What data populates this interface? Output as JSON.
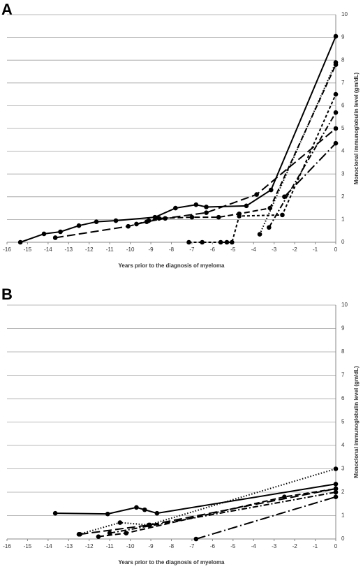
{
  "chart_data": [
    {
      "type": "line",
      "panel_label": "A",
      "x_label": "Years prior to the diagnosis of myeloma",
      "y_label": "Monoclonal immunoglobulin level (gm/dL)",
      "xlim": [
        -16,
        0
      ],
      "xticks": [
        -16,
        -15,
        -14,
        -13,
        -12,
        -11,
        -10,
        -9,
        -8,
        -7,
        -6,
        -5,
        -4,
        -3,
        -2,
        -1,
        0
      ],
      "ylim": [
        0,
        10
      ],
      "yticks": [
        0,
        1,
        2,
        3,
        4,
        5,
        6,
        7,
        8,
        9,
        10
      ],
      "grid": true,
      "series": [
        {
          "color": "#000000",
          "dash": "solid",
          "x": [
            -15.35,
            -14.2,
            -13.4,
            -12.5,
            -11.65,
            -10.7,
            -8.8,
            -7.8,
            -6.8,
            -6.3,
            -4.35,
            -3.15,
            0
          ],
          "values": [
            0,
            0.37,
            0.46,
            0.73,
            0.9,
            0.95,
            1.1,
            1.5,
            1.65,
            1.55,
            1.6,
            2.3,
            9.05
          ]
        },
        {
          "color": "#000000",
          "dash": "long-dash",
          "x": [
            -13.65,
            -10.1,
            -9.2,
            -8.3,
            -6.3,
            -3.85,
            0
          ],
          "values": [
            0.2,
            0.7,
            0.9,
            1.05,
            1.3,
            2.1,
            5.0
          ]
        },
        {
          "color": "#000000",
          "dash": "dash",
          "x": [
            -9.7,
            -9.1,
            -8.6,
            -7.0,
            -5.7,
            -4.7,
            -3.2,
            0
          ],
          "values": [
            0.8,
            0.95,
            1.05,
            1.1,
            1.1,
            1.25,
            1.5,
            7.8
          ]
        },
        {
          "color": "#000000",
          "dash": "short-dash",
          "x": [
            -7.15,
            -6.5,
            -5.6,
            -5.3,
            -5.05,
            -4.7,
            -2.6,
            0
          ],
          "values": [
            0,
            0,
            0,
            0,
            0,
            1.15,
            1.2,
            6.5
          ]
        },
        {
          "color": "#000000",
          "dash": "dot",
          "x": [
            -3.7,
            0
          ],
          "values": [
            0.35,
            7.9
          ]
        },
        {
          "color": "#000000",
          "dash": "dash-dot",
          "x": [
            -3.25,
            0
          ],
          "values": [
            0.65,
            5.7
          ]
        },
        {
          "color": "#000000",
          "dash": "long-dash-dot",
          "x": [
            -2.5,
            0
          ],
          "values": [
            2.0,
            4.35
          ]
        }
      ]
    },
    {
      "type": "line",
      "panel_label": "B",
      "x_label": "Years prior to the diagnosis of myeloma",
      "y_label": "Monoclonal immunoglobulin level (gm/dL)",
      "xlim": [
        -16,
        0
      ],
      "xticks": [
        -16,
        -15,
        -14,
        -13,
        -12,
        -11,
        -10,
        -9,
        -8,
        -7,
        -6,
        -5,
        -4,
        -3,
        -2,
        -1,
        0
      ],
      "ylim": [
        0,
        10
      ],
      "yticks": [
        0,
        1,
        2,
        3,
        4,
        5,
        6,
        7,
        8,
        9,
        10
      ],
      "grid": true,
      "series": [
        {
          "color": "#000000",
          "dash": "solid",
          "x": [
            -13.65,
            -11.1,
            -9.7,
            -9.3,
            -8.7,
            0
          ],
          "values": [
            1.1,
            1.07,
            1.35,
            1.25,
            1.1,
            2.35
          ]
        },
        {
          "color": "#000000",
          "dash": "dot",
          "x": [
            -12.5,
            -10.5,
            -9.1,
            0
          ],
          "values": [
            0.2,
            0.7,
            0.6,
            3.0
          ]
        },
        {
          "color": "#000000",
          "dash": "long-dash",
          "x": [
            -12.45,
            -9.05,
            0
          ],
          "values": [
            0.2,
            0.6,
            2.15
          ]
        },
        {
          "color": "#000000",
          "dash": "dash",
          "x": [
            -11.55,
            -10.2,
            -2.5,
            0
          ],
          "values": [
            0.1,
            0.25,
            1.8,
            2.15
          ]
        },
        {
          "color": "#000000",
          "dash": "dash-dot",
          "x": [
            -11.0,
            0
          ],
          "values": [
            0.25,
            2.0
          ]
        },
        {
          "color": "#000000",
          "dash": "long-dash-dot",
          "x": [
            -6.8,
            0
          ],
          "values": [
            0,
            1.8
          ]
        }
      ]
    }
  ]
}
